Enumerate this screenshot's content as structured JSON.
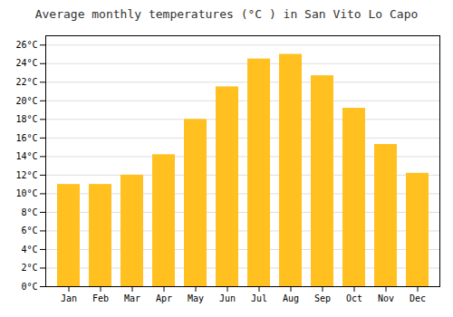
{
  "chart_data": {
    "type": "bar",
    "title": "Average monthly temperatures (°C ) in San Vito Lo Capo",
    "categories": [
      "Jan",
      "Feb",
      "Mar",
      "Apr",
      "May",
      "Jun",
      "Jul",
      "Aug",
      "Sep",
      "Oct",
      "Nov",
      "Dec"
    ],
    "values": [
      11,
      11,
      12,
      14.2,
      18,
      21.5,
      24.5,
      25,
      22.7,
      19.2,
      15.3,
      12.2
    ],
    "color": "#FFC020",
    "ylim": [
      0,
      27
    ],
    "yticks": [
      {
        "value": 0,
        "label": "0°C"
      },
      {
        "value": 2,
        "label": "2°C"
      },
      {
        "value": 4,
        "label": "4°C"
      },
      {
        "value": 6,
        "label": "6°C"
      },
      {
        "value": 8,
        "label": "8°C"
      },
      {
        "value": 10,
        "label": "10°C"
      },
      {
        "value": 12,
        "label": "12°C"
      },
      {
        "value": 14,
        "label": "14°C"
      },
      {
        "value": 16,
        "label": "16°C"
      },
      {
        "value": 18,
        "label": "18°C"
      },
      {
        "value": 20,
        "label": "20°C"
      },
      {
        "value": 22,
        "label": "22°C"
      },
      {
        "value": 24,
        "label": "24°C"
      },
      {
        "value": 26,
        "label": "26°C"
      }
    ],
    "grid": true
  }
}
